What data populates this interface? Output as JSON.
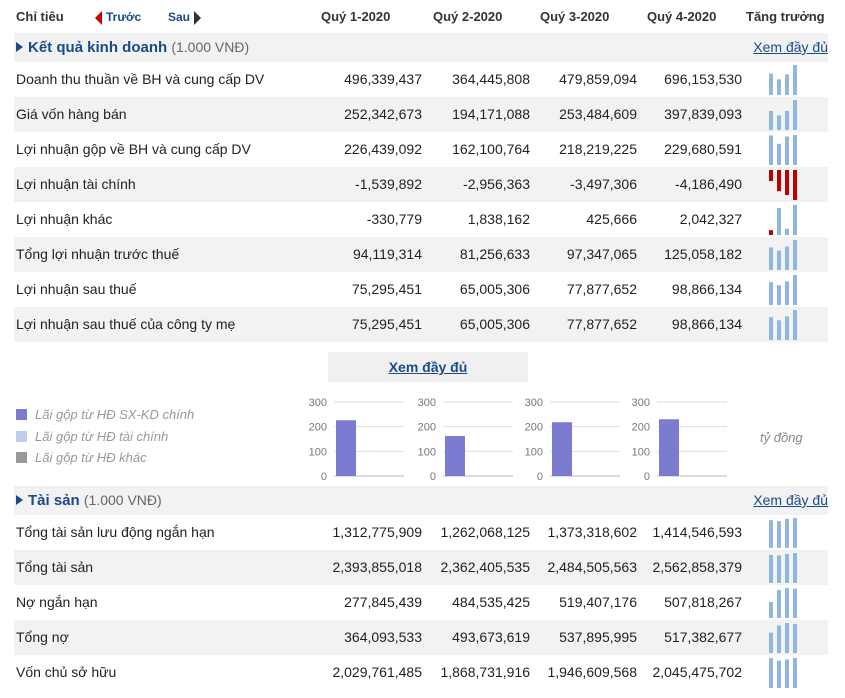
{
  "header": {
    "label": "Chỉ tiêu",
    "prev": "Trước",
    "next": "Sau",
    "quarters": [
      "Quý 1-2020",
      "Quý 2-2020",
      "Quý 3-2020",
      "Quý 4-2020"
    ],
    "growth": "Tăng trưởng"
  },
  "business": {
    "title": "Kết quả kinh doanh",
    "unit": "(1.000 VNĐ)",
    "more": "Xem đầy đủ",
    "rows": [
      {
        "label": "Doanh thu thuần về BH và cung cấp DV",
        "values": [
          "496,339,437",
          "364,445,808",
          "479,859,094",
          "696,153,530"
        ],
        "raw": [
          496339437,
          364445808,
          479859094,
          696153530
        ]
      },
      {
        "label": "Giá vốn hàng bán",
        "values": [
          "252,342,673",
          "194,171,088",
          "253,484,609",
          "397,839,093"
        ],
        "raw": [
          252342673,
          194171088,
          253484609,
          397839093
        ]
      },
      {
        "label": "Lợi nhuận gộp về BH và cung cấp DV",
        "values": [
          "226,439,092",
          "162,100,764",
          "218,219,225",
          "229,680,591"
        ],
        "raw": [
          226439092,
          162100764,
          218219225,
          229680591
        ]
      },
      {
        "label": "Lợi nhuận tài chính",
        "values": [
          "-1,539,892",
          "-2,956,363",
          "-3,497,306",
          "-4,186,490"
        ],
        "raw": [
          -1539892,
          -2956363,
          -3497306,
          -4186490
        ]
      },
      {
        "label": "Lợi nhuận khác",
        "values": [
          "-330,779",
          "1,838,162",
          "425,666",
          "2,042,327"
        ],
        "raw": [
          -330779,
          1838162,
          425666,
          2042327
        ]
      },
      {
        "label": "Tổng lợi nhuận trước thuế",
        "values": [
          "94,119,314",
          "81,256,633",
          "97,347,065",
          "125,058,182"
        ],
        "raw": [
          94119314,
          81256633,
          97347065,
          125058182
        ]
      },
      {
        "label": "Lợi nhuận sau thuế",
        "values": [
          "75,295,451",
          "65,005,306",
          "77,877,652",
          "98,866,134"
        ],
        "raw": [
          75295451,
          65005306,
          77877652,
          98866134
        ]
      },
      {
        "label": "Lợi nhuận sau thuế của công ty mẹ",
        "values": [
          "75,295,451",
          "65,005,306",
          "77,877,652",
          "98,866,134"
        ],
        "raw": [
          75295451,
          65005306,
          77877652,
          98866134
        ]
      }
    ]
  },
  "mid_more": "Xem đầy đủ",
  "legend": [
    {
      "label": "Lãi gộp từ HĐ SX-KD chính",
      "color": "#7b7bd0"
    },
    {
      "label": "Lãi gộp từ HĐ tài chính",
      "color": "#bcd0ee"
    },
    {
      "label": "Lãi gộp từ HĐ khác",
      "color": "#9a9a9a"
    }
  ],
  "unit_label": "tỷ đồng",
  "chart_data": {
    "type": "bar",
    "categories": [
      "Quý 1-2020",
      "Quý 2-2020",
      "Quý 3-2020",
      "Quý 4-2020"
    ],
    "series": [
      {
        "name": "Lãi gộp từ HĐ SX-KD chính",
        "values": [
          226,
          162,
          218,
          230
        ]
      }
    ],
    "yticks": [
      0,
      100,
      200,
      300
    ],
    "ylim": [
      0,
      300
    ]
  },
  "assets": {
    "title": "Tài sản",
    "unit": "(1.000 VNĐ)",
    "more": "Xem đầy đủ",
    "rows": [
      {
        "label": "Tổng tài sản lưu động ngắn hạn",
        "values": [
          "1,312,775,909",
          "1,262,068,125",
          "1,373,318,602",
          "1,414,546,593"
        ],
        "raw": [
          1312775909,
          1262068125,
          1373318602,
          1414546593
        ]
      },
      {
        "label": "Tổng tài sản",
        "values": [
          "2,393,855,018",
          "2,362,405,535",
          "2,484,505,563",
          "2,562,858,379"
        ],
        "raw": [
          2393855018,
          2362405535,
          2484505563,
          2562858379
        ]
      },
      {
        "label": "Nợ ngắn hạn",
        "values": [
          "277,845,439",
          "484,535,425",
          "519,407,176",
          "507,818,267"
        ],
        "raw": [
          277845439,
          484535425,
          519407176,
          507818267
        ]
      },
      {
        "label": "Tổng nợ",
        "values": [
          "364,093,533",
          "493,673,619",
          "537,895,995",
          "517,382,677"
        ],
        "raw": [
          364093533,
          493673619,
          537895995,
          517382677
        ]
      },
      {
        "label": "Vốn chủ sở hữu",
        "values": [
          "2,029,761,485",
          "1,868,731,916",
          "1,946,609,568",
          "2,045,475,702"
        ],
        "raw": [
          2029761485,
          1868731916,
          1946609568,
          2045475702
        ]
      }
    ]
  }
}
